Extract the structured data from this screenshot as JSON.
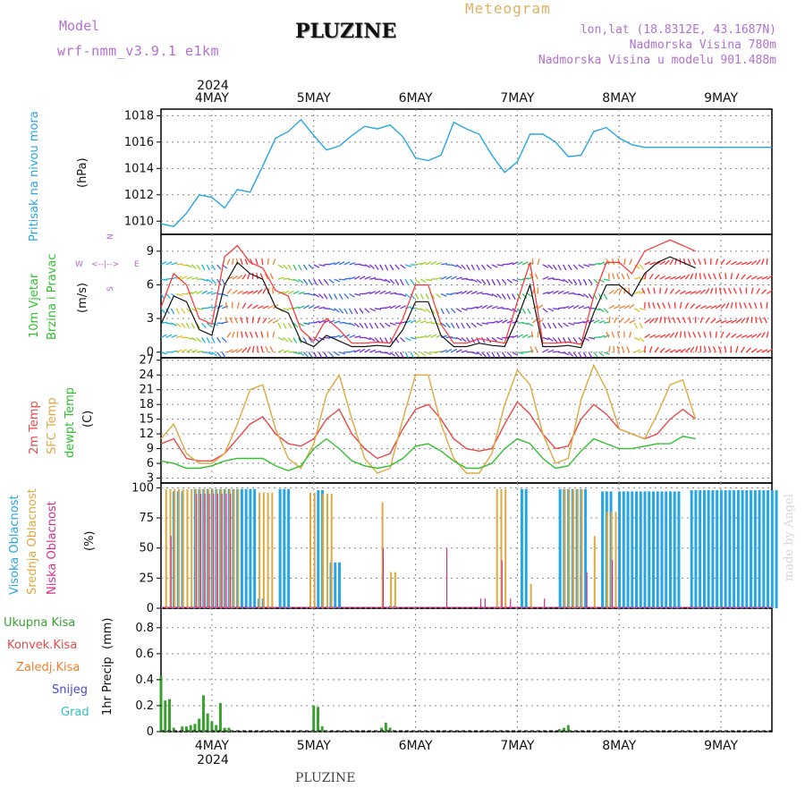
{
  "header": {
    "model_label": "Model",
    "model_name": "wrf-nmm_v3.9.1 e1km",
    "title": "PLUZINE",
    "meteogram_label": "Meteogram",
    "lonlat": "lon,lat (18.8312E, 43.1687N)",
    "altitude": "Nadmorska Visina 780m",
    "model_altitude": "Nadmorska Visina u modelu 901.488m",
    "year_top": "2024",
    "year_bottom": "2024",
    "footer": "PLUZINE",
    "credit": "made by Angel"
  },
  "colors": {
    "pressure": "#27a6e6",
    "wind_speed": "#111111",
    "wind_gust": "#ff3030",
    "temp2m": "#e84848",
    "sfc_temp": "#e0a840",
    "dewpoint": "#30c030",
    "cloud_high": "#27a6e6",
    "cloud_mid": "#e0a840",
    "cloud_low": "#d0308c",
    "precip_total": "#3aa030",
    "precip_conv": "#e84848"
  },
  "chart_data": [
    {
      "type": "line",
      "panel": "pressure",
      "ylabel_1": "Pritisak na nivou mora",
      "ylabel_2": "(hPa)",
      "ylim": [
        1009,
        1018.5
      ],
      "yticks": [
        "1010",
        "1012",
        "1014",
        "1016",
        "1018"
      ],
      "x_hours": [
        0,
        3,
        6,
        9,
        12,
        15,
        18,
        21,
        24,
        27,
        30,
        33,
        36,
        39,
        42,
        45,
        48,
        51,
        54,
        57,
        60,
        63,
        66,
        69,
        72,
        75,
        78,
        81,
        84,
        87,
        90,
        93,
        96,
        99,
        102,
        105,
        108,
        111,
        114,
        117,
        120,
        123,
        126,
        129,
        132,
        135,
        138,
        141,
        144
      ],
      "values": [
        1009.8,
        1009.6,
        1010.6,
        1012.0,
        1011.8,
        1011.0,
        1012.4,
        1012.2,
        1014.2,
        1016.3,
        1016.8,
        1017.7,
        1016.5,
        1015.4,
        1015.7,
        1016.5,
        1017.2,
        1017.0,
        1017.3,
        1016.4,
        1014.8,
        1014.6,
        1015.0,
        1017.5,
        1017.0,
        1016.6,
        1015.0,
        1013.7,
        1014.5,
        1016.6,
        1016.6,
        1016.0,
        1014.9,
        1015.0,
        1016.8,
        1017.1,
        1016.3,
        1015.8,
        1015.6,
        1015.6,
        1015.6,
        1015.6,
        1015.6,
        1015.6,
        1015.6,
        1015.6,
        1015.6,
        1015.6,
        1015.6
      ],
      "series": [
        {
          "name": "Pritisak na nivou mora"
        }
      ]
    },
    {
      "type": "line",
      "panel": "wind",
      "ylabel_1": "10m Vjetar",
      "ylabel_2": "Brzina i Pravac",
      "ylabel_3": "(m/s)",
      "compass": {
        "n": "N",
        "w": "W",
        "e": "E",
        "s": "S"
      },
      "ylim": [
        -0.5,
        10.5
      ],
      "yticks": [
        "0",
        "3",
        "6",
        "9"
      ],
      "x_hours": [
        0,
        3,
        6,
        9,
        12,
        15,
        18,
        21,
        24,
        27,
        30,
        33,
        36,
        39,
        42,
        45,
        48,
        51,
        54,
        57,
        60,
        63,
        66,
        69,
        72,
        75,
        78,
        81,
        84,
        87,
        90,
        93,
        96,
        99,
        102,
        105,
        108,
        111,
        114,
        117,
        120,
        123,
        126
      ],
      "speed": [
        2.5,
        5.0,
        4.5,
        2.0,
        1.5,
        6.0,
        8.0,
        7.0,
        6.5,
        4.0,
        3.5,
        1.0,
        0.5,
        1.5,
        1.0,
        0.5,
        0.5,
        0.6,
        0.5,
        2.0,
        4.5,
        4.5,
        1.5,
        0.5,
        0.5,
        0.8,
        0.6,
        0.5,
        3.0,
        6.0,
        0.5,
        0.5,
        0.6,
        0.4,
        3.5,
        6.0,
        6.0,
        5.0,
        7.0,
        8.0,
        8.5,
        8.0,
        7.5
      ],
      "gust": [
        4.0,
        7.0,
        6.0,
        3.0,
        2.5,
        8.5,
        9.5,
        8.0,
        7.5,
        5.5,
        5.0,
        2.0,
        1.0,
        3.0,
        2.0,
        0.8,
        0.8,
        0.9,
        0.8,
        3.0,
        6.0,
        6.0,
        2.5,
        0.8,
        0.8,
        1.2,
        1.0,
        0.8,
        4.5,
        8.0,
        0.8,
        0.8,
        0.9,
        0.7,
        5.0,
        8.0,
        8.0,
        7.0,
        9.0,
        9.5,
        10.0,
        9.5,
        9.0
      ],
      "series": [
        {
          "name": "speed"
        },
        {
          "name": "gust"
        }
      ]
    },
    {
      "type": "line",
      "panel": "temperature",
      "ylabel_1": "2m Temp",
      "ylabel_2": "SFC Temp",
      "ylabel_3": "dewpt Temp",
      "ylabel_4": "(C)",
      "ylim": [
        2,
        27.5
      ],
      "yticks": [
        "3",
        "6",
        "9",
        "12",
        "15",
        "18",
        "21",
        "24",
        "27"
      ],
      "x_hours": [
        0,
        3,
        6,
        9,
        12,
        15,
        18,
        21,
        24,
        27,
        30,
        33,
        36,
        39,
        42,
        45,
        48,
        51,
        54,
        57,
        60,
        63,
        66,
        69,
        72,
        75,
        78,
        81,
        84,
        87,
        90,
        93,
        96,
        99,
        102,
        105,
        108,
        111,
        114,
        117,
        120,
        123,
        126
      ],
      "series": [
        {
          "name": "2m Temp",
          "values": [
            10,
            11,
            7,
            6.5,
            6.5,
            8,
            11,
            14,
            15.5,
            12,
            10,
            9.5,
            11,
            15,
            17,
            12,
            9,
            7,
            8,
            13,
            17,
            18,
            15,
            11,
            9,
            8.5,
            9,
            14,
            18.5,
            16,
            12,
            9,
            9.5,
            15,
            18,
            16,
            13,
            12,
            11,
            12,
            15,
            17,
            15
          ]
        },
        {
          "name": "SFC Temp",
          "values": [
            11,
            14,
            8,
            6,
            6,
            8,
            14,
            21,
            22,
            13,
            7,
            5,
            10,
            20,
            24,
            15,
            7,
            4,
            5,
            15,
            24,
            24,
            14,
            7,
            4,
            4,
            8,
            18,
            25,
            22,
            12,
            6,
            7,
            19,
            26,
            21,
            13,
            12,
            11,
            16,
            22,
            23,
            15
          ]
        },
        {
          "name": "dewpt Temp",
          "values": [
            6.5,
            6,
            5,
            5,
            5.5,
            6.5,
            7,
            7,
            7,
            5.5,
            4.5,
            5.5,
            9,
            11,
            9,
            6.5,
            5.5,
            5,
            5.5,
            7,
            9.5,
            10,
            8.5,
            6.5,
            5,
            5,
            6,
            9,
            11,
            10,
            7,
            5,
            5.5,
            8.5,
            11,
            10,
            9,
            9,
            9.5,
            10,
            10,
            11.5,
            11
          ]
        }
      ]
    },
    {
      "type": "bar",
      "panel": "clouds",
      "ylabel_1": "Visoka Oblacnost",
      "ylabel_2": "Srednja Oblacnost",
      "ylabel_3": "Niska Oblacnost",
      "ylabel_4": "(%)",
      "ylim": [
        0,
        104
      ],
      "yticks": [
        "0",
        "25",
        "50",
        "75",
        "100"
      ],
      "series": [
        {
          "name": "Visoka Oblacnost",
          "segments": [
            [
              1,
              1,
              0
            ],
            [
              3,
              5,
              97
            ],
            [
              8,
              18,
              99
            ],
            [
              19,
              22,
              99
            ],
            [
              23,
              24,
              8
            ],
            [
              28,
              30,
              99
            ],
            [
              37,
              38,
              98
            ],
            [
              40,
              42,
              38
            ],
            [
              54,
              55,
              2
            ],
            [
              85,
              86,
              99
            ],
            [
              94,
              100,
              99
            ],
            [
              104,
              106,
              97
            ],
            [
              108,
              122,
              97
            ],
            [
              125,
              145,
              98
            ]
          ]
        },
        {
          "name": "Srednja Oblacnost",
          "segments": [
            [
              1,
              3,
              99
            ],
            [
              4,
              18,
              99
            ],
            [
              23,
              26,
              96
            ],
            [
              35,
              36,
              96
            ],
            [
              38,
              40,
              95
            ],
            [
              52,
              52,
              88
            ],
            [
              54,
              55,
              30
            ],
            [
              79,
              81,
              99
            ],
            [
              87,
              87,
              20
            ],
            [
              95,
              99,
              99
            ],
            [
              102,
              102,
              60
            ],
            [
              105,
              107,
              80
            ]
          ]
        },
        {
          "name": "Niska Oblacnost",
          "segments": [
            [
              2,
              2,
              60
            ],
            [
              8,
              16,
              95
            ],
            [
              52,
              52,
              50
            ],
            [
              67,
              67,
              50
            ],
            [
              75,
              76,
              8
            ],
            [
              80,
              80,
              40
            ],
            [
              82,
              82,
              8
            ],
            [
              90,
              90,
              8
            ],
            [
              100,
              100,
              30
            ],
            [
              106,
              106,
              40
            ]
          ]
        }
      ]
    },
    {
      "type": "bar",
      "panel": "precip",
      "ylabel_1": "1hr Precip",
      "ylabel_2": "(mm)",
      "legend": [
        "Ukupna Kisa",
        "Konvek.Kisa",
        "Zaledj.Kisa",
        "Snijeg",
        "Grad"
      ],
      "ylim": [
        0,
        0.95
      ],
      "yticks": [
        "0",
        "0.2",
        "0.4",
        "0.6",
        "0.8"
      ],
      "x_hours": [
        0,
        1,
        2,
        3,
        5,
        6,
        7,
        8,
        9,
        10,
        11,
        12,
        13,
        14,
        15,
        16,
        36,
        37,
        38,
        39,
        52,
        53,
        54,
        94,
        95,
        96
      ],
      "values": [
        0.43,
        0.24,
        0.25,
        0.03,
        0.04,
        0.04,
        0.05,
        0.06,
        0.1,
        0.28,
        0.14,
        0.08,
        0.05,
        0.22,
        0.03,
        0.03,
        0.2,
        0.19,
        0.04,
        0.01,
        0.03,
        0.07,
        0.03,
        0.02,
        0.03,
        0.05
      ],
      "series": [
        {
          "name": "Ukupna Kisa"
        }
      ]
    },
    {
      "type": "line",
      "panel": "time-axis",
      "day_labels": [
        "4MAY",
        "5MAY",
        "6MAY",
        "7MAY",
        "8MAY",
        "9MAY"
      ],
      "day_offsets_hours": [
        12,
        36,
        60,
        84,
        108,
        132
      ]
    }
  ]
}
